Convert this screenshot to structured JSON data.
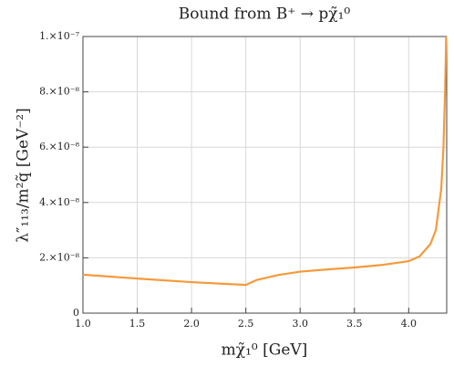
{
  "chart_data": {
    "type": "line",
    "title": "Bound from B⁺ → pχ̃₁⁰",
    "x_label": "mχ̃₁⁰ [GeV]",
    "y_label": "λ″₁₁₃/m²q̃ [GeV⁻²]",
    "x": [
      1.0,
      1.5,
      2.0,
      2.5,
      2.6,
      2.8,
      3.0,
      3.25,
      3.5,
      3.75,
      4.0,
      4.1,
      4.2,
      4.25,
      4.3,
      4.32,
      4.335,
      4.345
    ],
    "series": [
      {
        "color": "#f59a3a",
        "values": [
          1.39e-08,
          1.25e-08,
          1.12e-08,
          1.02e-08,
          1.2e-08,
          1.38e-08,
          1.5e-08,
          1.58e-08,
          1.65e-08,
          1.74e-08,
          1.88e-08,
          2.05e-08,
          2.5e-08,
          3e-08,
          4.5e-08,
          6e-08,
          8e-08,
          1e-07
        ]
      }
    ],
    "xlim": [
      1.0,
      4.35
    ],
    "ylim": [
      0,
      1e-07
    ],
    "xticks": [
      {
        "value": 1,
        "label": "1.0"
      },
      1.5,
      {
        "value": 2,
        "label": "2.0"
      },
      2.5,
      {
        "value": 3,
        "label": "3.0"
      },
      3.5,
      {
        "value": 4,
        "label": "4.0"
      }
    ],
    "yticks": [
      0,
      {
        "value": 2e-08,
        "label": "2.×10⁻⁸"
      },
      {
        "value": 4e-08,
        "label": "4.×10⁻⁸"
      },
      {
        "value": 6e-08,
        "label": "6.×10⁻⁸"
      },
      {
        "value": 8e-08,
        "label": "8.×10⁻⁸"
      },
      {
        "value": 1e-07,
        "label": "1.×10⁻⁷"
      }
    ],
    "grid": true
  }
}
